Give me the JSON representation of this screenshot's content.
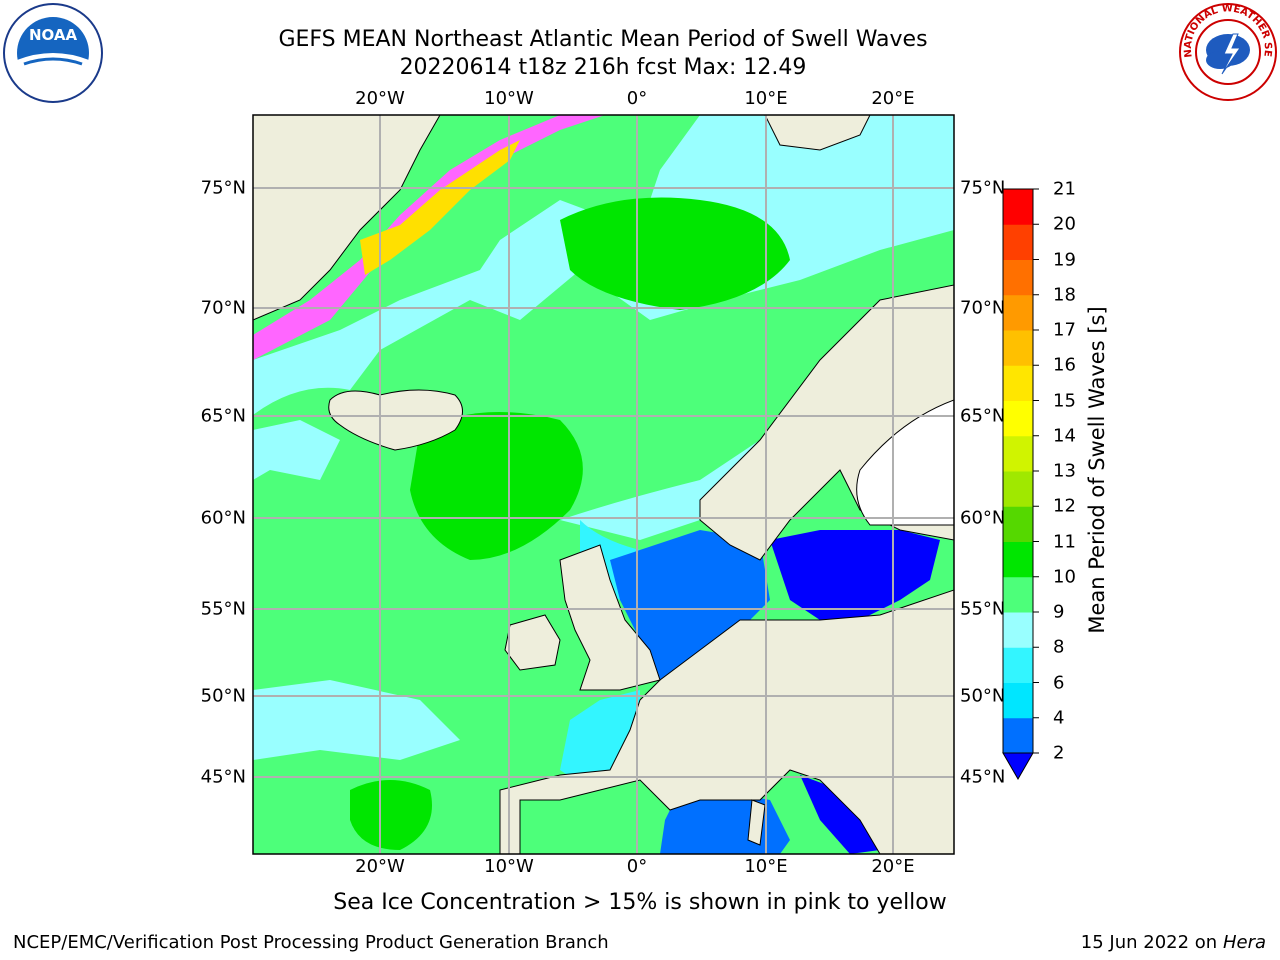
{
  "title": {
    "line1": "GEFS MEAN Northeast Atlantic Mean Period of Swell Waves",
    "line2": "20220614 t18z 216h fcst   Max: 12.49"
  },
  "axes": {
    "lon_labels": [
      "20°W",
      "10°W",
      "0°",
      "10°E",
      "20°E"
    ],
    "lat_labels": [
      "75°N",
      "70°N",
      "65°N",
      "60°N",
      "55°N",
      "50°N",
      "45°N"
    ]
  },
  "colorbar": {
    "label": "Mean Period of Swell Waves [s]",
    "ticks": [
      "2",
      "4",
      "6",
      "8",
      "9",
      "10",
      "11",
      "12",
      "13",
      "14",
      "15",
      "16",
      "17",
      "18",
      "19",
      "20",
      "21"
    ],
    "colors": [
      "#0000ff",
      "#0070ff",
      "#00e6ff",
      "#33f0ff",
      "#99ffff",
      "#4dff80",
      "#00e600",
      "#33cc00",
      "#80e000",
      "#c0f000",
      "#ffff00",
      "#ffe000",
      "#ffc000",
      "#ff9000",
      "#ff6000",
      "#ff3000",
      "#ff0000"
    ],
    "band_colors": [
      "#0070ff",
      "#00e6ff",
      "#33f5ff",
      "#99ffff",
      "#4dff7a",
      "#00e600",
      "#55d800",
      "#a0e800",
      "#d0f400",
      "#ffff00",
      "#ffe600",
      "#ffc000",
      "#ff9a00",
      "#ff7000",
      "#ff4000",
      "#ff0000"
    ],
    "extend_color": "#0000ff"
  },
  "legend_note": "Sea Ice Concentration > 15% is shown in pink to yellow",
  "footer": {
    "left": "NCEP/EMC/Verification Post Processing Product Generation Branch",
    "date": "15 Jun 2022 on",
    "machine": "Hera"
  },
  "logos": {
    "left": "NOAA",
    "right": "NATIONAL WEATHER SERVICE"
  },
  "colors": {
    "land": "#eeeedc",
    "ocean_primary": "#4dff7a",
    "ice": "#ff66ff",
    "grid": "#b0b0b0"
  }
}
